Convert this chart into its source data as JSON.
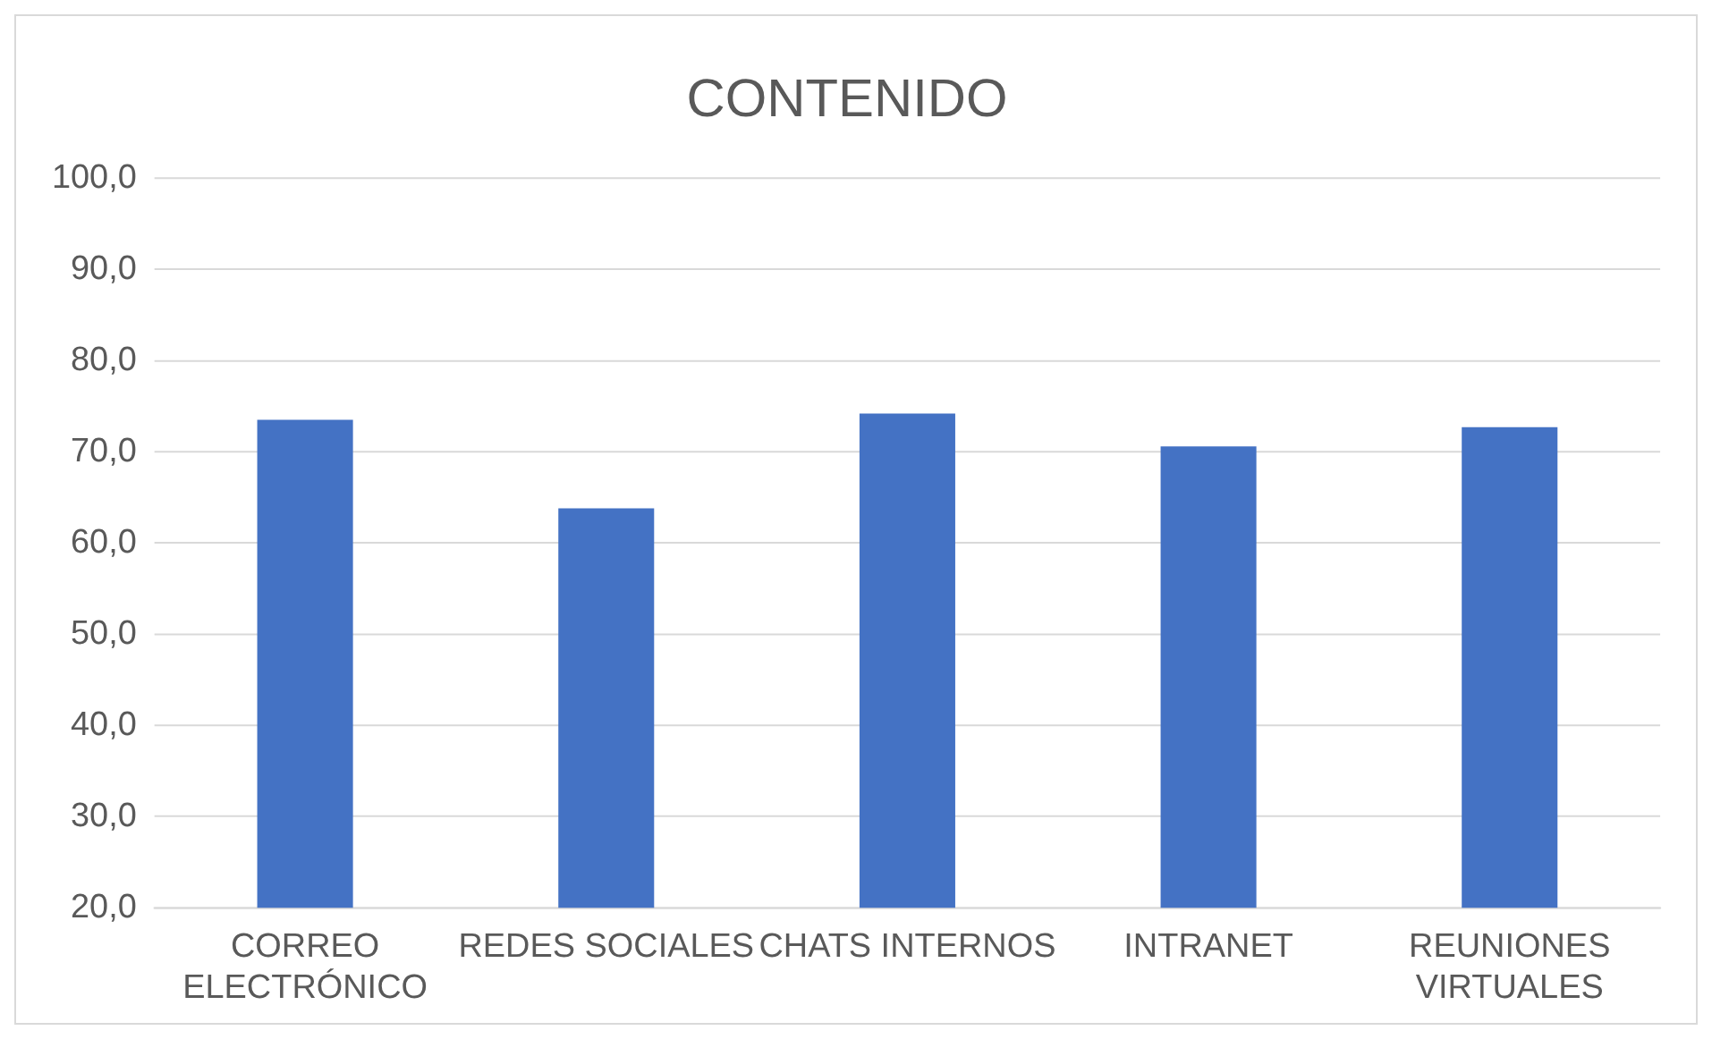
{
  "chart_data": {
    "type": "bar",
    "title": "CONTENIDO",
    "categories": [
      "CORREO ELECTRÓNICO",
      "REDES SOCIALES",
      "CHATS INTERNOS",
      "INTRANET",
      "REUNIONES VIRTUALES"
    ],
    "values": [
      73.5,
      63.8,
      74.2,
      70.6,
      72.7
    ],
    "color": "#4472c4",
    "ylim": [
      20,
      100
    ],
    "yticks": [
      {
        "value": 20,
        "label": "20,0"
      },
      {
        "value": 30,
        "label": "30,0"
      },
      {
        "value": 40,
        "label": "40,0"
      },
      {
        "value": 50,
        "label": "50,0"
      },
      {
        "value": 60,
        "label": "60,0"
      },
      {
        "value": 70,
        "label": "70,0"
      },
      {
        "value": 80,
        "label": "80,0"
      },
      {
        "value": 90,
        "label": "90,0"
      },
      {
        "value": 100,
        "label": "100,0"
      }
    ],
    "grid": "y",
    "legend": false
  }
}
